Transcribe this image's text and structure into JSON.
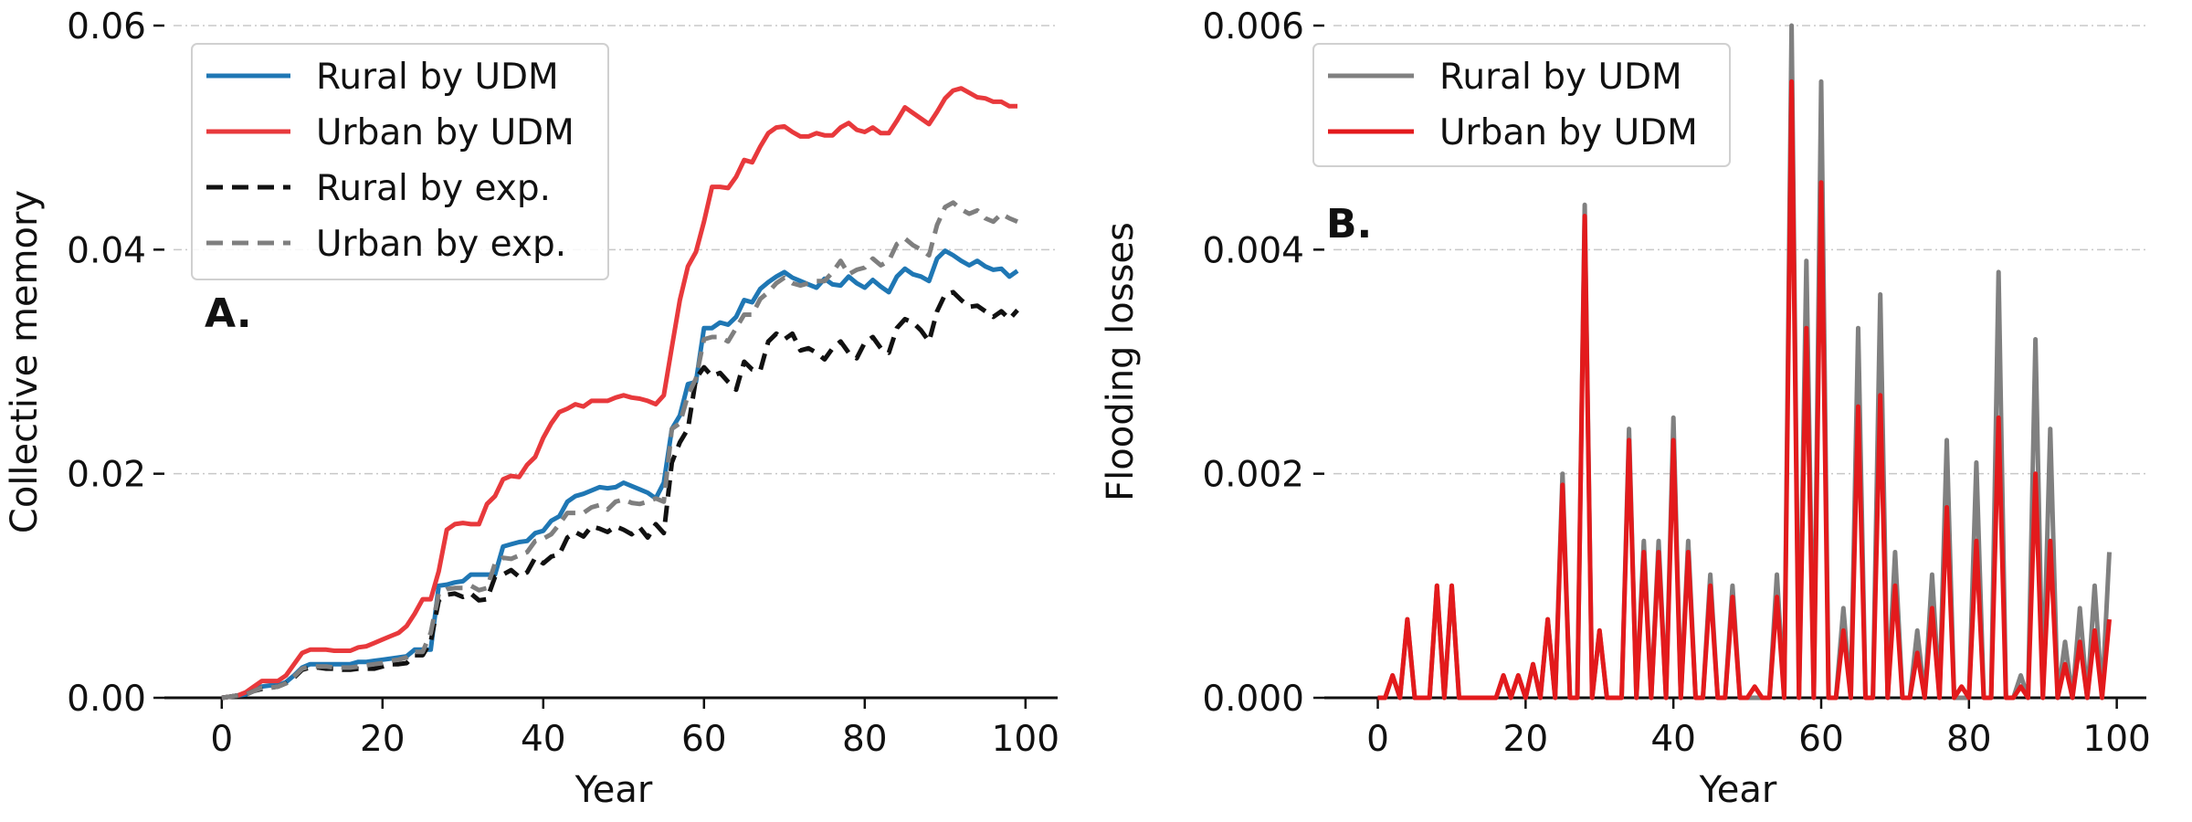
{
  "chart_data": [
    {
      "type": "line",
      "panel_label": "A.",
      "xlabel": "Year",
      "ylabel": "Collective memory",
      "xlim": [
        -6,
        104
      ],
      "ylim": [
        0,
        0.06
      ],
      "xticks": [
        0,
        20,
        40,
        60,
        80,
        100
      ],
      "xtick_labels": [
        "0",
        "20",
        "40",
        "60",
        "80",
        "100"
      ],
      "yticks": [
        0,
        0.02,
        0.04,
        0.06
      ],
      "ytick_labels": [
        "0.00",
        "0.02",
        "0.04",
        "0.06"
      ],
      "grid": "horizontal dash-dot",
      "legend_position": "top-left",
      "x": [
        0,
        1,
        2,
        3,
        4,
        5,
        6,
        7,
        8,
        9,
        10,
        11,
        12,
        13,
        14,
        15,
        16,
        17,
        18,
        19,
        20,
        21,
        22,
        23,
        24,
        25,
        26,
        27,
        28,
        29,
        30,
        31,
        32,
        33,
        34,
        35,
        36,
        37,
        38,
        39,
        40,
        41,
        42,
        43,
        44,
        45,
        46,
        47,
        48,
        49,
        50,
        51,
        52,
        53,
        54,
        55,
        56,
        57,
        58,
        59,
        60,
        61,
        62,
        63,
        64,
        65,
        66,
        67,
        68,
        69,
        70,
        71,
        72,
        73,
        74,
        75,
        76,
        77,
        78,
        79,
        80,
        81,
        82,
        83,
        84,
        85,
        86,
        87,
        88,
        89,
        90,
        91,
        92,
        93,
        94,
        95,
        96,
        97,
        98,
        99
      ],
      "series": [
        {
          "name": "Rural by UDM",
          "color": "#1f77b4",
          "dash": "solid",
          "values": [
            0.0,
            0.0001,
            0.0002,
            0.0003,
            0.0007,
            0.001,
            0.0011,
            0.0011,
            0.0014,
            0.002,
            0.0027,
            0.003,
            0.003,
            0.003,
            0.003,
            0.003,
            0.003,
            0.0032,
            0.0032,
            0.0033,
            0.0034,
            0.0035,
            0.0036,
            0.0037,
            0.0043,
            0.0043,
            0.0043,
            0.01,
            0.0101,
            0.0103,
            0.0104,
            0.011,
            0.011,
            0.011,
            0.011,
            0.0135,
            0.0137,
            0.0139,
            0.014,
            0.0147,
            0.0149,
            0.0158,
            0.0162,
            0.0175,
            0.018,
            0.0182,
            0.0185,
            0.0188,
            0.0187,
            0.0188,
            0.0192,
            0.0189,
            0.0186,
            0.0183,
            0.0178,
            0.0192,
            0.024,
            0.0252,
            0.028,
            0.0282,
            0.033,
            0.033,
            0.0335,
            0.0333,
            0.034,
            0.0355,
            0.0353,
            0.0365,
            0.0371,
            0.0376,
            0.038,
            0.0375,
            0.0372,
            0.0369,
            0.0366,
            0.0374,
            0.0369,
            0.0368,
            0.0376,
            0.037,
            0.0366,
            0.0373,
            0.0367,
            0.0362,
            0.0376,
            0.0383,
            0.0378,
            0.0376,
            0.0372,
            0.0392,
            0.0399,
            0.0395,
            0.039,
            0.0386,
            0.039,
            0.0385,
            0.0382,
            0.0383,
            0.0376,
            0.0381
          ]
        },
        {
          "name": "Urban by UDM",
          "color": "#e8393c",
          "dash": "solid",
          "values": [
            0.0,
            0.0001,
            0.0002,
            0.0005,
            0.001,
            0.0015,
            0.0015,
            0.0015,
            0.002,
            0.003,
            0.004,
            0.0043,
            0.0043,
            0.0043,
            0.0042,
            0.0042,
            0.0042,
            0.0045,
            0.0046,
            0.0049,
            0.0052,
            0.0055,
            0.0058,
            0.0064,
            0.0075,
            0.0088,
            0.0088,
            0.0113,
            0.015,
            0.0155,
            0.0156,
            0.0155,
            0.0155,
            0.0173,
            0.018,
            0.0195,
            0.0198,
            0.0197,
            0.0208,
            0.0215,
            0.0232,
            0.0245,
            0.0255,
            0.0258,
            0.0262,
            0.026,
            0.0265,
            0.0265,
            0.0265,
            0.0268,
            0.027,
            0.0268,
            0.0267,
            0.0265,
            0.0262,
            0.027,
            0.0313,
            0.0355,
            0.0385,
            0.0398,
            0.0425,
            0.0456,
            0.0456,
            0.0455,
            0.0465,
            0.048,
            0.0478,
            0.0492,
            0.0504,
            0.0509,
            0.051,
            0.0505,
            0.0501,
            0.0501,
            0.0504,
            0.0502,
            0.0502,
            0.0509,
            0.0513,
            0.0507,
            0.0505,
            0.0509,
            0.0504,
            0.0504,
            0.0515,
            0.0527,
            0.0522,
            0.0517,
            0.0512,
            0.0523,
            0.0535,
            0.0542,
            0.0544,
            0.054,
            0.0536,
            0.0535,
            0.0532,
            0.0532,
            0.0528,
            0.0528
          ]
        },
        {
          "name": "Rural by exp.",
          "color": "#111111",
          "dash": "dashed",
          "values": [
            0.0,
            0.0001,
            0.0002,
            0.0003,
            0.0006,
            0.0008,
            0.0009,
            0.001,
            0.0013,
            0.0018,
            0.0025,
            0.0027,
            0.0027,
            0.0026,
            0.0026,
            0.0025,
            0.0025,
            0.0026,
            0.0026,
            0.0026,
            0.0028,
            0.003,
            0.003,
            0.0031,
            0.0038,
            0.0038,
            0.005,
            0.0087,
            0.0092,
            0.0093,
            0.009,
            0.0093,
            0.0087,
            0.0088,
            0.0108,
            0.011,
            0.0114,
            0.0108,
            0.0112,
            0.0125,
            0.012,
            0.0126,
            0.0128,
            0.0143,
            0.0148,
            0.0144,
            0.0153,
            0.0151,
            0.0148,
            0.0153,
            0.015,
            0.0146,
            0.0152,
            0.0143,
            0.0155,
            0.0147,
            0.021,
            0.0228,
            0.024,
            0.0285,
            0.0295,
            0.0287,
            0.029,
            0.0282,
            0.0275,
            0.03,
            0.0293,
            0.0292,
            0.0318,
            0.0325,
            0.032,
            0.0325,
            0.031,
            0.0312,
            0.0308,
            0.0302,
            0.0312,
            0.0318,
            0.0308,
            0.0303,
            0.0317,
            0.0322,
            0.0312,
            0.0308,
            0.033,
            0.0338,
            0.0335,
            0.0328,
            0.0318,
            0.0345,
            0.036,
            0.0362,
            0.0355,
            0.0349,
            0.035,
            0.0345,
            0.034,
            0.0345,
            0.0338,
            0.0346
          ]
        },
        {
          "name": "Urban by exp.",
          "color": "#7f7f7f",
          "dash": "dashed",
          "values": [
            0.0,
            0.0001,
            0.0002,
            0.0003,
            0.0006,
            0.0009,
            0.0009,
            0.001,
            0.0013,
            0.0019,
            0.0026,
            0.0028,
            0.0028,
            0.0028,
            0.0027,
            0.0027,
            0.0027,
            0.0028,
            0.0029,
            0.003,
            0.0031,
            0.0033,
            0.0034,
            0.0036,
            0.0041,
            0.0041,
            0.0058,
            0.0093,
            0.0097,
            0.0098,
            0.0098,
            0.01,
            0.0096,
            0.0098,
            0.012,
            0.0125,
            0.0124,
            0.0127,
            0.013,
            0.014,
            0.0142,
            0.0146,
            0.0155,
            0.0165,
            0.0165,
            0.0165,
            0.017,
            0.0172,
            0.0168,
            0.0175,
            0.0177,
            0.0174,
            0.0173,
            0.0175,
            0.0178,
            0.0175,
            0.024,
            0.0245,
            0.027,
            0.0285,
            0.032,
            0.0322,
            0.0322,
            0.0318,
            0.033,
            0.0342,
            0.0342,
            0.0356,
            0.0362,
            0.037,
            0.0375,
            0.037,
            0.0368,
            0.037,
            0.0372,
            0.0372,
            0.038,
            0.039,
            0.0378,
            0.0382,
            0.0384,
            0.0392,
            0.0386,
            0.039,
            0.0405,
            0.041,
            0.0404,
            0.04,
            0.0395,
            0.0422,
            0.0438,
            0.0442,
            0.0436,
            0.0432,
            0.0435,
            0.0428,
            0.0425,
            0.0432,
            0.0428,
            0.0425
          ]
        }
      ]
    },
    {
      "type": "line",
      "panel_label": "B.",
      "xlabel": "Year",
      "ylabel": "Flooding losses",
      "xlim": [
        -6,
        104
      ],
      "ylim": [
        0,
        0.006
      ],
      "xticks": [
        0,
        20,
        40,
        60,
        80,
        100
      ],
      "xtick_labels": [
        "0",
        "20",
        "40",
        "60",
        "80",
        "100"
      ],
      "yticks": [
        0,
        0.002,
        0.004,
        0.006
      ],
      "ytick_labels": [
        "0.000",
        "0.002",
        "0.004",
        "0.006"
      ],
      "grid": "horizontal dash-dot",
      "legend_position": "top-left",
      "x": [
        0,
        1,
        2,
        3,
        4,
        5,
        6,
        7,
        8,
        9,
        10,
        11,
        12,
        13,
        14,
        15,
        16,
        17,
        18,
        19,
        20,
        21,
        22,
        23,
        24,
        25,
        26,
        27,
        28,
        29,
        30,
        31,
        32,
        33,
        34,
        35,
        36,
        37,
        38,
        39,
        40,
        41,
        42,
        43,
        44,
        45,
        46,
        47,
        48,
        49,
        50,
        51,
        52,
        53,
        54,
        55,
        56,
        57,
        58,
        59,
        60,
        61,
        62,
        63,
        64,
        65,
        66,
        67,
        68,
        69,
        70,
        71,
        72,
        73,
        74,
        75,
        76,
        77,
        78,
        79,
        80,
        81,
        82,
        83,
        84,
        85,
        86,
        87,
        88,
        89,
        90,
        91,
        92,
        93,
        94,
        95,
        96,
        97,
        98,
        99
      ],
      "series": [
        {
          "name": "Rural by UDM",
          "color": "#808080",
          "dash": "solid",
          "values": [
            0,
            0,
            0.0002,
            0,
            0.0007,
            0,
            0,
            0,
            0.001,
            0,
            0.001,
            0,
            0,
            0,
            0,
            0,
            0,
            0.0002,
            0,
            0.0002,
            0,
            0.0003,
            0,
            0.0007,
            0,
            0.002,
            0,
            0,
            0.0044,
            0,
            0.0006,
            0,
            0,
            0,
            0.0024,
            0,
            0.0014,
            0,
            0.0014,
            0,
            0.0025,
            0,
            0.0014,
            0,
            0,
            0.0011,
            0,
            0,
            0.001,
            0,
            0,
            0,
            0,
            0,
            0.0011,
            0,
            0.006,
            0,
            0.0039,
            0,
            0.0055,
            0,
            0,
            0.0008,
            0,
            0.0033,
            0,
            0,
            0.0036,
            0,
            0.0013,
            0,
            0,
            0.0006,
            0,
            0.0011,
            0,
            0.0023,
            0,
            0,
            0,
            0.0021,
            0,
            0,
            0.0038,
            0,
            0,
            0.0002,
            0,
            0.0032,
            0,
            0.0024,
            0,
            0.0005,
            0,
            0.0008,
            0,
            0.001,
            0,
            0.0013
          ]
        },
        {
          "name": "Urban by UDM",
          "color": "#e31a1c",
          "dash": "solid",
          "values": [
            0,
            0,
            0.0002,
            0,
            0.0007,
            0,
            0,
            0,
            0.001,
            0,
            0.001,
            0,
            0,
            0,
            0,
            0,
            0,
            0.0002,
            0,
            0.0002,
            0,
            0.0003,
            0,
            0.0007,
            0,
            0.0019,
            0,
            0,
            0.0043,
            0,
            0.0006,
            0,
            0,
            0,
            0.0023,
            0,
            0.0013,
            0,
            0.0013,
            0,
            0.0023,
            0,
            0.0013,
            0,
            0,
            0.001,
            0,
            0,
            0.0009,
            0,
            0,
            0.0001,
            0,
            0,
            0.0009,
            0,
            0.0055,
            0,
            0.0033,
            0,
            0.0046,
            0,
            0,
            0.0006,
            0,
            0.0026,
            0,
            0,
            0.0027,
            0,
            0.001,
            0,
            0,
            0.0004,
            0,
            0.0008,
            0,
            0.0017,
            0,
            0.0001,
            0,
            0.0014,
            0,
            0,
            0.0025,
            0,
            0,
            0.0001,
            0,
            0.002,
            0,
            0.0014,
            0,
            0.0003,
            0,
            0.0005,
            0,
            0.0006,
            0,
            0.0007
          ]
        }
      ]
    }
  ]
}
